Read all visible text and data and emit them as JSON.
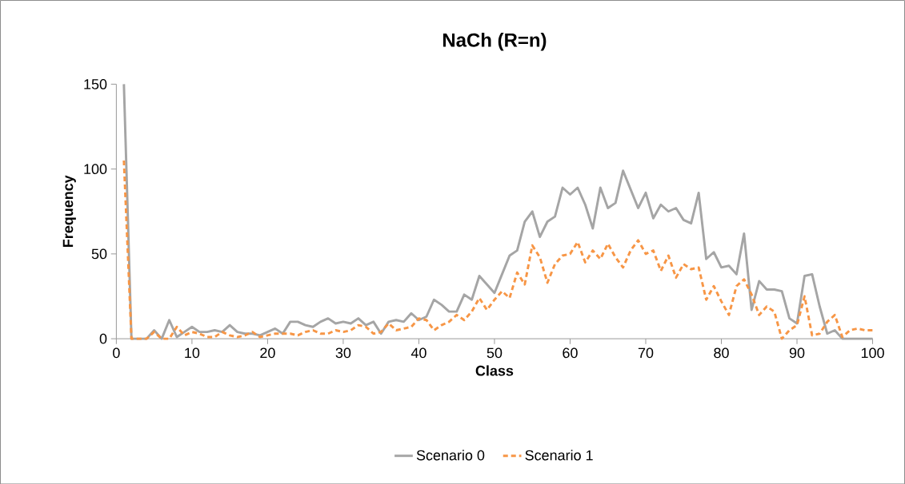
{
  "chart_data": {
    "type": "line",
    "title": "NaCh (R=n)",
    "xlabel": "Class",
    "ylabel": "Frequency",
    "x": [
      1,
      2,
      3,
      4,
      5,
      6,
      7,
      8,
      9,
      10,
      11,
      12,
      13,
      14,
      15,
      16,
      17,
      18,
      19,
      20,
      21,
      22,
      23,
      24,
      25,
      26,
      27,
      28,
      29,
      30,
      31,
      32,
      33,
      34,
      35,
      36,
      37,
      38,
      39,
      40,
      41,
      42,
      43,
      44,
      45,
      46,
      47,
      48,
      49,
      50,
      51,
      52,
      53,
      54,
      55,
      56,
      57,
      58,
      59,
      60,
      61,
      62,
      63,
      64,
      65,
      66,
      67,
      68,
      69,
      70,
      71,
      72,
      73,
      74,
      75,
      76,
      77,
      78,
      79,
      80,
      81,
      82,
      83,
      84,
      85,
      86,
      87,
      88,
      89,
      90,
      91,
      92,
      93,
      94,
      95,
      96,
      97,
      98,
      99,
      100
    ],
    "series": [
      {
        "name": "Scenario 0",
        "color": "#a5a5a5",
        "line_style": "solid",
        "values": [
          150,
          0,
          0,
          0,
          5,
          0,
          11,
          1,
          4,
          7,
          4,
          4,
          5,
          4,
          8,
          4,
          3,
          3,
          2,
          4,
          6,
          3,
          10,
          10,
          8,
          7,
          10,
          12,
          9,
          10,
          9,
          12,
          8,
          10,
          3,
          10,
          11,
          10,
          15,
          11,
          13,
          23,
          20,
          16,
          16,
          26,
          23,
          37,
          32,
          27,
          38,
          49,
          52,
          69,
          75,
          60,
          69,
          72,
          89,
          85,
          89,
          79,
          65,
          89,
          77,
          80,
          99,
          88,
          77,
          86,
          71,
          79,
          75,
          77,
          70,
          68,
          86,
          47,
          51,
          42,
          43,
          38,
          62,
          17,
          34,
          29,
          29,
          28,
          12,
          9,
          37,
          38,
          19,
          3,
          5,
          0,
          0,
          0,
          0,
          0
        ]
      },
      {
        "name": "Scenario 1",
        "color": "#f79646",
        "line_style": "dashed",
        "values": [
          105,
          0,
          0,
          0,
          4,
          0,
          0,
          7,
          2,
          4,
          3,
          1,
          1,
          4,
          2,
          1,
          2,
          4,
          1,
          2,
          3,
          3,
          3,
          2,
          4,
          5,
          3,
          3,
          5,
          4,
          5,
          8,
          7,
          3,
          4,
          9,
          5,
          6,
          7,
          12,
          11,
          5,
          8,
          10,
          14,
          11,
          16,
          24,
          17,
          23,
          28,
          24,
          39,
          32,
          55,
          48,
          33,
          44,
          49,
          50,
          57,
          45,
          52,
          47,
          56,
          48,
          42,
          52,
          58,
          50,
          52,
          40,
          49,
          36,
          44,
          41,
          42,
          23,
          31,
          22,
          14,
          31,
          35,
          26,
          14,
          19,
          16,
          0,
          5,
          8,
          25,
          2,
          3,
          10,
          14,
          1,
          5,
          6,
          5,
          5
        ]
      }
    ],
    "xlim": [
      0,
      100
    ],
    "xticks": [
      0,
      10,
      20,
      30,
      40,
      50,
      60,
      70,
      80,
      90,
      100
    ],
    "ylim": [
      0,
      150
    ],
    "yticks": [
      0,
      50,
      100,
      150
    ],
    "legend": "bottom"
  }
}
